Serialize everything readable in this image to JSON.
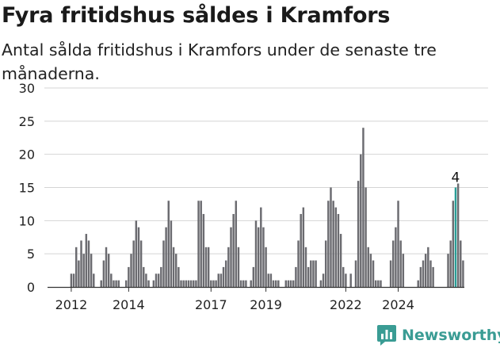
{
  "title": "Fyra fritidshus såldes i Kramfors",
  "subtitle": "Antal sålda fritidshus i Kramfors under de senaste tre månaderna.",
  "brand": {
    "name": "Newsworthy",
    "color": "#3a9c94",
    "icon": "bar-chart-logo-icon"
  },
  "colors": {
    "bar": "#6b6b70",
    "highlight": "#2a9d96",
    "grid": "#d4d4d4",
    "axis": "#333333"
  },
  "chart_data": {
    "type": "bar",
    "title": "Fyra fritidshus såldes i Kramfors",
    "subtitle": "Antal sålda fritidshus i Kramfors under de senaste tre månaderna.",
    "xlabel": "",
    "ylabel": "",
    "ylim": [
      0,
      30
    ],
    "yticks": [
      0,
      5,
      10,
      15,
      20,
      25,
      30
    ],
    "grid": true,
    "x_tick_labels": [
      "2012",
      "2014",
      "2017",
      "2019",
      "2022",
      "2024"
    ],
    "x_tick_positions": [
      9,
      32,
      65,
      87,
      119,
      140
    ],
    "values": [
      0,
      0,
      0,
      0,
      0,
      0,
      0,
      0,
      0,
      2,
      2,
      6,
      4,
      7,
      5,
      8,
      7,
      5,
      2,
      0,
      0,
      1,
      4,
      6,
      5,
      2,
      1,
      1,
      1,
      0,
      0,
      1,
      3,
      5,
      7,
      10,
      9,
      7,
      3,
      2,
      1,
      0,
      1,
      2,
      2,
      3,
      7,
      9,
      13,
      10,
      6,
      5,
      3,
      1,
      1,
      1,
      1,
      1,
      1,
      1,
      13,
      13,
      11,
      6,
      6,
      1,
      1,
      1,
      2,
      2,
      3,
      4,
      6,
      9,
      11,
      13,
      6,
      1,
      1,
      1,
      0,
      1,
      3,
      10,
      9,
      12,
      9,
      6,
      2,
      2,
      1,
      1,
      1,
      0,
      0,
      1,
      1,
      1,
      1,
      3,
      7,
      11,
      12,
      6,
      3,
      4,
      4,
      4,
      0,
      1,
      2,
      7,
      13,
      15,
      13,
      12,
      11,
      8,
      3,
      2,
      0,
      2,
      0,
      4,
      16,
      20,
      24,
      15,
      6,
      5,
      4,
      1,
      1,
      1,
      0,
      0,
      0,
      4,
      7,
      9,
      13,
      7,
      5,
      0,
      0,
      0,
      0,
      0,
      1,
      3,
      4,
      5,
      6,
      4,
      3,
      0,
      0,
      0,
      0,
      0,
      5,
      7,
      13,
      15,
      16,
      7,
      4
    ],
    "highlight_index": 163,
    "annotation": {
      "text": "4",
      "index": 163
    }
  }
}
